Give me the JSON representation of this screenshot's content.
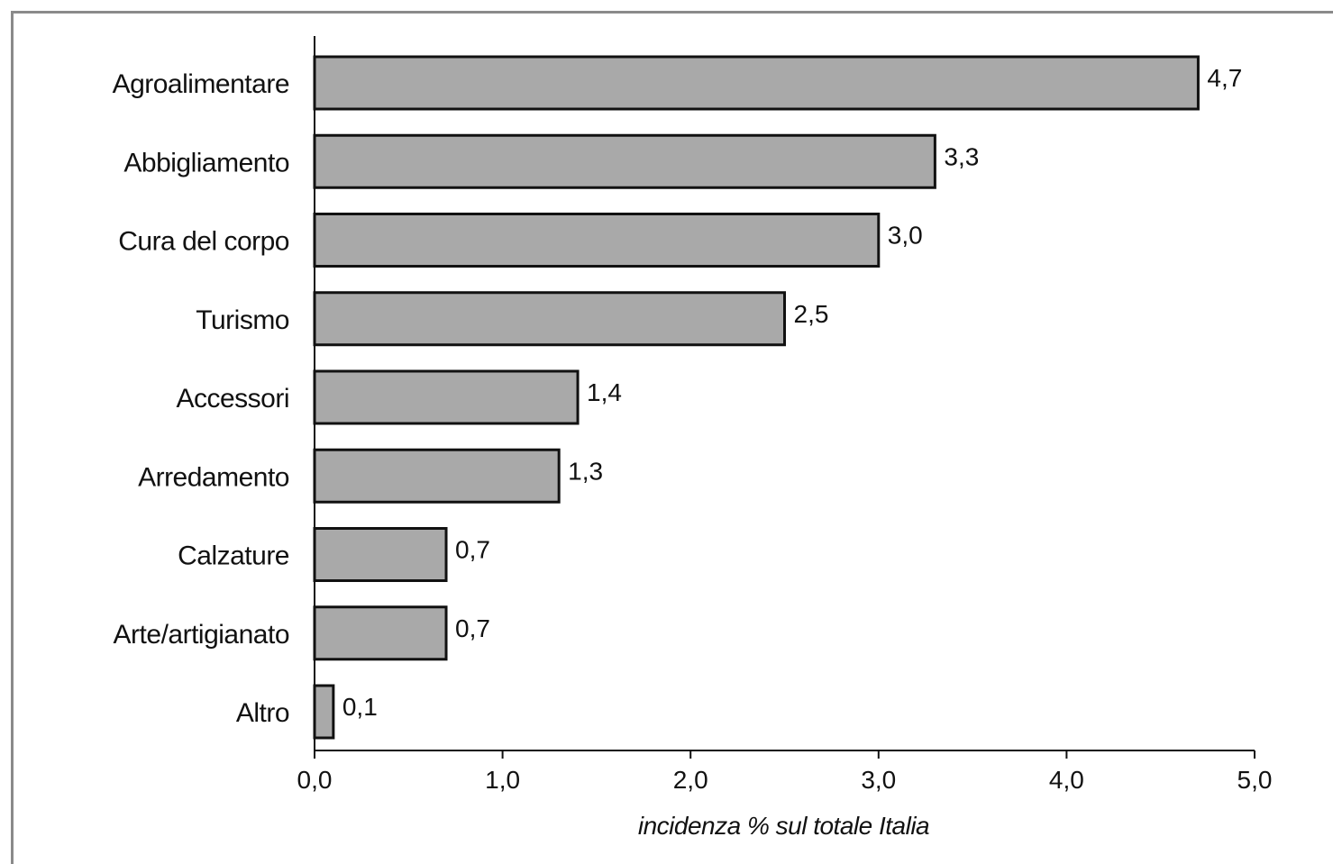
{
  "chart_data": {
    "type": "bar",
    "orientation": "horizontal",
    "title": "",
    "xlabel": "incidenza % sul totale Italia",
    "ylabel": "",
    "xlim": [
      0,
      5
    ],
    "x_ticks": [
      0,
      1,
      2,
      3,
      4,
      5
    ],
    "x_tick_labels": [
      "0,0",
      "1,0",
      "2,0",
      "3,0",
      "4,0",
      "5,0"
    ],
    "categories": [
      "Agroalimentare",
      "Abbigliamento",
      "Cura del corpo",
      "Turismo",
      "Accessori",
      "Arredamento",
      "Calzature",
      "Arte/artigianato",
      "Altro"
    ],
    "values": [
      4.7,
      3.3,
      3.0,
      2.5,
      1.4,
      1.3,
      0.7,
      0.7,
      0.1
    ],
    "value_labels": [
      "4,7",
      "3,3",
      "3,0",
      "2,5",
      "1,4",
      "1,3",
      "0,7",
      "0,7",
      "0,1"
    ],
    "bar_color": "#a9a9a9",
    "bar_outline": "#111111",
    "grid": false,
    "legend": "none"
  }
}
